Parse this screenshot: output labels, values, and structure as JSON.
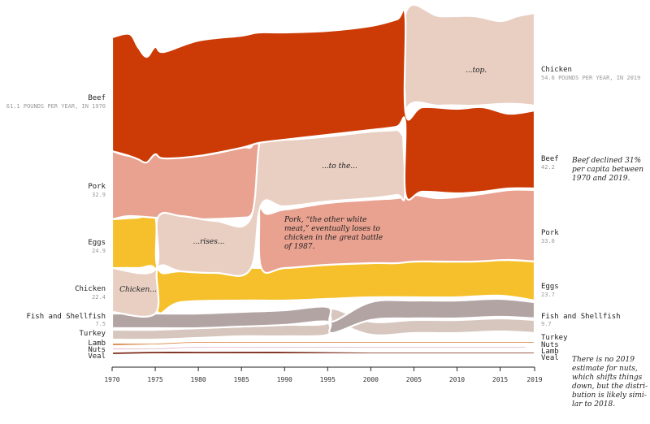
{
  "chart_data": {
    "type": "area",
    "subtype": "ranked-stream (bump area)",
    "x_ticks": [
      1970,
      1975,
      1980,
      1985,
      1990,
      1995,
      2000,
      2005,
      2010,
      2015,
      2019
    ],
    "xlim": [
      1970,
      2019
    ],
    "unit": "pounds per capita per year",
    "colors": {
      "Beef": "#cc3a05",
      "Chicken": "#e8cfc2",
      "Pork": "#e9a190",
      "Eggs": "#f5c02b",
      "Fish and Shellfish": "#b3a4a4",
      "Turkey": "#d6c6bd",
      "Lamb": "#d97b35",
      "Nuts": "#e2b3c4",
      "Veal": "#7a2a16"
    },
    "series": [
      {
        "name": "Beef",
        "values": [
          [
            1970,
            61.1
          ],
          [
            1975,
            60
          ],
          [
            1980,
            57
          ],
          [
            1985,
            55
          ],
          [
            1990,
            52
          ],
          [
            1995,
            50
          ],
          [
            2000,
            52
          ],
          [
            2004,
            53
          ],
          [
            2005,
            50
          ],
          [
            2010,
            45
          ],
          [
            2015,
            41
          ],
          [
            2019,
            42.2
          ]
        ]
      },
      {
        "name": "Chicken",
        "values": [
          [
            1970,
            22.4
          ],
          [
            1975,
            24
          ],
          [
            1980,
            28
          ],
          [
            1985,
            32
          ],
          [
            1990,
            40
          ],
          [
            1995,
            44
          ],
          [
            2000,
            50
          ],
          [
            2005,
            55
          ],
          [
            2010,
            53
          ],
          [
            2015,
            55
          ],
          [
            2019,
            54.6
          ]
        ]
      },
      {
        "name": "Pork",
        "values": [
          [
            1970,
            32.9
          ],
          [
            1975,
            28
          ],
          [
            1980,
            36
          ],
          [
            1985,
            32
          ],
          [
            1990,
            32
          ],
          [
            1995,
            33
          ],
          [
            2000,
            34
          ],
          [
            2005,
            34
          ],
          [
            2010,
            33
          ],
          [
            2015,
            32
          ],
          [
            2019,
            33.0
          ]
        ]
      },
      {
        "name": "Eggs",
        "values": [
          [
            1970,
            24.9
          ],
          [
            1975,
            22
          ],
          [
            1980,
            21
          ],
          [
            1985,
            20
          ],
          [
            1990,
            20
          ],
          [
            1995,
            20
          ],
          [
            2000,
            22
          ],
          [
            2005,
            22
          ],
          [
            2010,
            22
          ],
          [
            2015,
            21
          ],
          [
            2019,
            23.7
          ]
        ]
      },
      {
        "name": "Fish and Shellfish",
        "values": [
          [
            1970,
            7.5
          ],
          [
            1975,
            8
          ],
          [
            1980,
            8
          ],
          [
            1985,
            8.5
          ],
          [
            1990,
            9
          ],
          [
            1995,
            9
          ],
          [
            2000,
            9.5
          ],
          [
            2005,
            10
          ],
          [
            2010,
            9.5
          ],
          [
            2015,
            9.5
          ],
          [
            2019,
            9.7
          ]
        ]
      },
      {
        "name": "Turkey",
        "values": [
          [
            1970,
            4
          ],
          [
            1975,
            5
          ],
          [
            1980,
            6
          ],
          [
            1985,
            8
          ],
          [
            1990,
            10
          ],
          [
            1995,
            10
          ],
          [
            2000,
            10
          ],
          [
            2005,
            10
          ],
          [
            2010,
            9
          ],
          [
            2015,
            9
          ],
          [
            2019,
            9
          ]
        ]
      },
      {
        "name": "Lamb",
        "values": [
          [
            1970,
            2
          ],
          [
            1975,
            1.5
          ],
          [
            1980,
            1.5
          ],
          [
            1985,
            1.5
          ],
          [
            1990,
            1
          ],
          [
            1995,
            1
          ],
          [
            2000,
            1
          ],
          [
            2005,
            1
          ],
          [
            2010,
            1
          ],
          [
            2015,
            1
          ],
          [
            2019,
            1
          ]
        ]
      },
      {
        "name": "Nuts",
        "values": [
          [
            1970,
            1.5
          ],
          [
            1975,
            1.5
          ],
          [
            1980,
            1.5
          ],
          [
            1985,
            1.5
          ],
          [
            1990,
            1.5
          ],
          [
            1995,
            1.5
          ],
          [
            2000,
            1.5
          ],
          [
            2005,
            1.5
          ],
          [
            2010,
            1.5
          ],
          [
            2015,
            1.5
          ]
        ]
      },
      {
        "name": "Veal",
        "values": [
          [
            1970,
            2
          ],
          [
            1975,
            1.8
          ],
          [
            1980,
            1.5
          ],
          [
            1985,
            1.5
          ],
          [
            1990,
            1
          ],
          [
            1995,
            1
          ],
          [
            2000,
            0.5
          ],
          [
            2005,
            0.5
          ],
          [
            2010,
            0.5
          ],
          [
            2015,
            0.5
          ],
          [
            2019,
            0.5
          ]
        ]
      }
    ],
    "left_labels": {
      "beef_name": "Beef",
      "beef_note": "61.1 POUNDS PER YEAR, IN 1970",
      "pork_name": "Pork",
      "pork_value": "32.9",
      "eggs_name": "Eggs",
      "eggs_value": "24.9",
      "chicken_name": "Chicken",
      "chicken_value": "22.4",
      "fish_name": "Fish and Shellfish",
      "fish_value": "7.5",
      "turkey_name": "Turkey",
      "lamb_name": "Lamb",
      "nuts_name": "Nuts",
      "veal_name": "Veal"
    },
    "right_labels": {
      "chicken_name": "Chicken",
      "chicken_note": "54.6 POUNDS PER YEAR, IN 2019",
      "beef_name": "Beef",
      "beef_value": "42.2",
      "pork_name": "Pork",
      "pork_value": "33.0",
      "eggs_name": "Eggs",
      "eggs_value": "23.7",
      "fish_name": "Fish and Shellfish",
      "fish_value": "9.7",
      "turkey_name": "Turkey",
      "nuts_name": "Nuts",
      "lamb_name": "Lamb",
      "veal_name": "Veal"
    },
    "annotations": {
      "chicken": "Chicken...",
      "rises": "...rises...",
      "to_the": "...to the...",
      "top": "...top.",
      "pork_1": "Pork, “the other white",
      "pork_2": "meat,” eventually loses to",
      "pork_3": "chicken in the great battle",
      "pork_4": "of 1987.",
      "beef_1": "Beef declined 31%",
      "beef_2": "per capita between",
      "beef_3": "1970 and 2019.",
      "nuts_1": "There is no 2019",
      "nuts_2": "estimate for nuts,",
      "nuts_3": "which shifts things",
      "nuts_4": "down, but the distri-",
      "nuts_5": "bution is likely simi-",
      "nuts_6": "lar to 2018."
    }
  }
}
